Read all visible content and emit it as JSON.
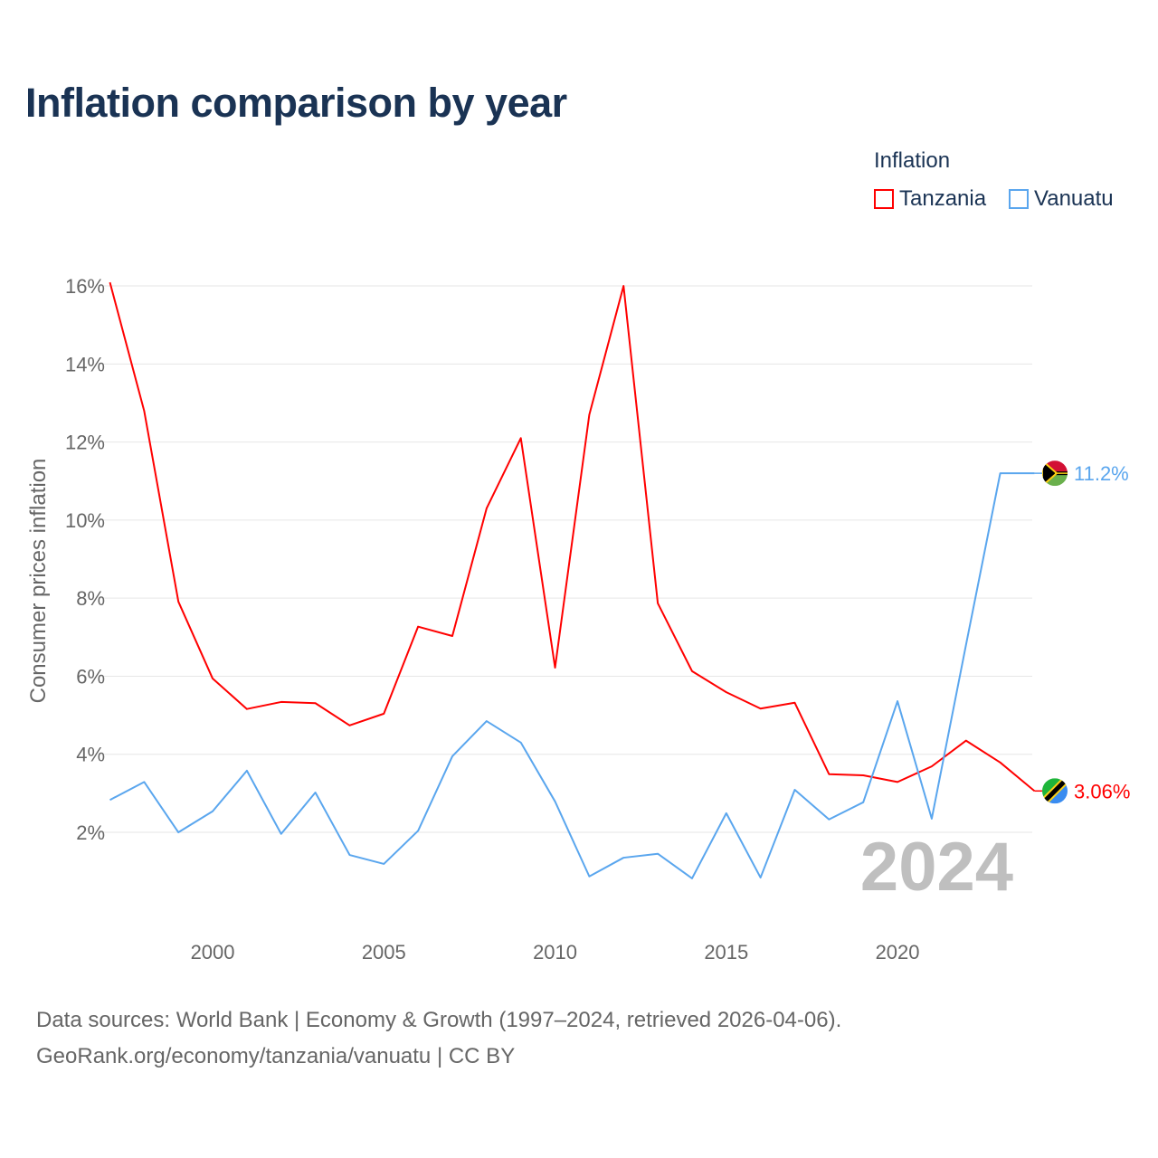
{
  "title": "Inflation comparison by year",
  "legend": {
    "title": "Inflation",
    "items": [
      {
        "label": "Tanzania",
        "color": "#ff0000"
      },
      {
        "label": "Vanuatu",
        "color": "#5aa6ee"
      }
    ]
  },
  "source": {
    "line1": "Data sources: World Bank | Economy & Growth (1997–2024, retrieved 2026-04-06).",
    "line2": "GeoRank.org/economy/tanzania/vanuatu | CC BY"
  },
  "chart_data": {
    "type": "line",
    "title": "Inflation comparison by year",
    "xlabel": "",
    "ylabel": "Consumer prices inflation",
    "xlim": [
      1997,
      2024
    ],
    "ylim": [
      0,
      16
    ],
    "grid": true,
    "legend_position": "top-right",
    "x_ticks": [
      2000,
      2005,
      2010,
      2015,
      2020
    ],
    "y_ticks": [
      2,
      4,
      6,
      8,
      10,
      12,
      14,
      16
    ],
    "y_tick_labels": [
      "2%",
      "4%",
      "6%",
      "8%",
      "10%",
      "12%",
      "14%",
      "16%"
    ],
    "watermark_year": "2024",
    "x": [
      1997,
      1998,
      1999,
      2000,
      2001,
      2002,
      2003,
      2004,
      2005,
      2006,
      2007,
      2008,
      2009,
      2010,
      2011,
      2012,
      2013,
      2014,
      2015,
      2016,
      2017,
      2018,
      2019,
      2020,
      2021,
      2022,
      2023,
      2024
    ],
    "series": [
      {
        "name": "Tanzania",
        "color": "#ff0000",
        "end_label": "3.06%",
        "flag": "tanzania-flag",
        "values": [
          16.09,
          12.8,
          7.91,
          5.94,
          5.16,
          5.34,
          5.31,
          4.74,
          5.04,
          7.27,
          7.03,
          10.3,
          12.1,
          6.22,
          12.7,
          16.0,
          7.87,
          6.13,
          5.59,
          5.17,
          5.32,
          3.49,
          3.46,
          3.29,
          3.69,
          4.35,
          3.79,
          3.06
        ]
      },
      {
        "name": "Vanuatu",
        "color": "#5aa6ee",
        "end_label": "11.2%",
        "flag": "vanuatu-flag",
        "values": [
          2.83,
          3.29,
          2.0,
          2.54,
          3.58,
          1.96,
          3.02,
          1.42,
          1.19,
          2.04,
          3.95,
          4.85,
          4.3,
          2.79,
          0.87,
          1.35,
          1.45,
          0.82,
          2.49,
          0.84,
          3.09,
          2.33,
          2.77,
          5.36,
          2.35,
          6.8,
          11.2,
          11.2
        ]
      }
    ]
  }
}
